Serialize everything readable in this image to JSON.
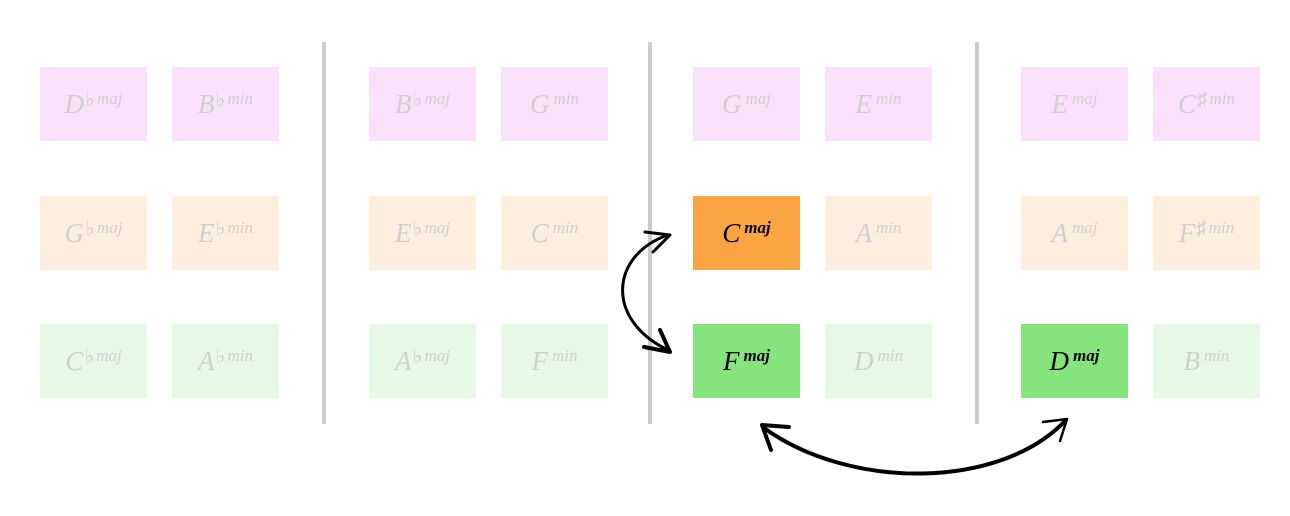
{
  "columns": [
    {
      "rows": [
        [
          {
            "root": "D",
            "acc": "♭",
            "qual": "maj"
          },
          {
            "root": "B",
            "acc": "♭",
            "qual": "min"
          }
        ],
        [
          {
            "root": "G",
            "acc": "♭",
            "qual": "maj"
          },
          {
            "root": "E",
            "acc": "♭",
            "qual": "min"
          }
        ],
        [
          {
            "root": "C",
            "acc": "♭",
            "qual": "maj"
          },
          {
            "root": "A",
            "acc": "♭",
            "qual": "min"
          }
        ]
      ]
    },
    {
      "rows": [
        [
          {
            "root": "B",
            "acc": "♭",
            "qual": "maj"
          },
          {
            "root": "G",
            "acc": "",
            "qual": "min"
          }
        ],
        [
          {
            "root": "E",
            "acc": "♭",
            "qual": "maj"
          },
          {
            "root": "C",
            "acc": "",
            "qual": "min"
          }
        ],
        [
          {
            "root": "A",
            "acc": "♭",
            "qual": "maj"
          },
          {
            "root": "F",
            "acc": "",
            "qual": "min"
          }
        ]
      ]
    },
    {
      "rows": [
        [
          {
            "root": "G",
            "acc": "",
            "qual": "maj"
          },
          {
            "root": "E",
            "acc": "",
            "qual": "min"
          }
        ],
        [
          {
            "root": "C",
            "acc": "",
            "qual": "maj",
            "highlight": "orange"
          },
          {
            "root": "A",
            "acc": "",
            "qual": "min"
          }
        ],
        [
          {
            "root": "F",
            "acc": "",
            "qual": "maj",
            "highlight": "green"
          },
          {
            "root": "D",
            "acc": "",
            "qual": "min"
          }
        ]
      ]
    },
    {
      "rows": [
        [
          {
            "root": "E",
            "acc": "",
            "qual": "maj"
          },
          {
            "root": "C",
            "acc": "♯",
            "qual": "min"
          }
        ],
        [
          {
            "root": "A",
            "acc": "",
            "qual": "maj"
          },
          {
            "root": "F",
            "acc": "♯",
            "qual": "min"
          }
        ],
        [
          {
            "root": "D",
            "acc": "",
            "qual": "maj",
            "highlight": "green"
          },
          {
            "root": "B",
            "acc": "",
            "qual": "min"
          }
        ]
      ]
    }
  ],
  "colors": {
    "row_backgrounds": [
      "#f9e1fb",
      "#fdeede",
      "#e6f9e4"
    ],
    "highlight_orange": "#fba542",
    "highlight_green": "#85e47c",
    "inactive_text": "#cfcfcf",
    "divider": "#cccccc",
    "arrow": "#000000"
  },
  "arrows": [
    {
      "from": "C maj",
      "to": "F maj",
      "style": "double-headed curved"
    },
    {
      "from": "F maj",
      "to": "D maj",
      "style": "double-headed curved"
    }
  ]
}
